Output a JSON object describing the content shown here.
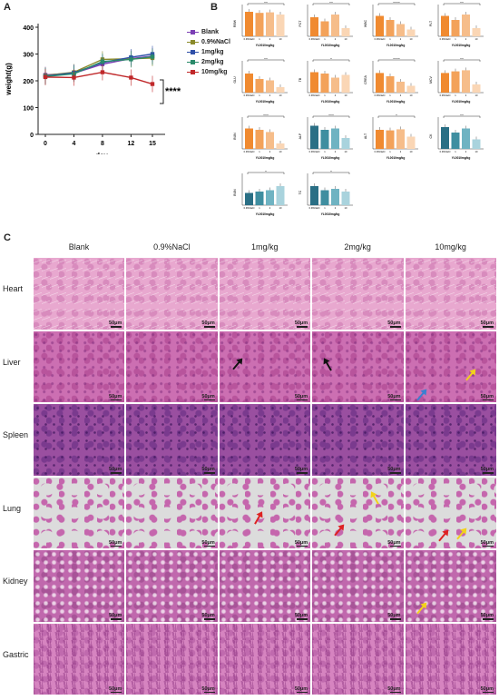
{
  "panels": {
    "a": "A",
    "b": "B",
    "c": "C"
  },
  "chart_data": {
    "type": "line",
    "x": [
      0,
      4,
      8,
      12,
      15
    ],
    "xlabel": "day",
    "ylabel": "weight(g)",
    "ylim": [
      0,
      400
    ],
    "yticks": [
      "0",
      "100",
      "200",
      "300",
      "400"
    ],
    "xticks": [
      "0",
      "4",
      "8",
      "12",
      "15"
    ],
    "significance": "****",
    "series": [
      {
        "name": "Blank",
        "color": "#7b3fb5",
        "values": [
          222,
          228,
          262,
          283,
          292
        ]
      },
      {
        "name": "0.9%NaCl",
        "color": "#8a8a2a",
        "values": [
          220,
          232,
          280,
          282,
          285
        ]
      },
      {
        "name": "1mg/kg",
        "color": "#2f4fa8",
        "values": [
          218,
          230,
          268,
          288,
          300
        ]
      },
      {
        "name": "2mg/kg",
        "color": "#2a8a6a",
        "values": [
          216,
          226,
          272,
          280,
          290
        ]
      },
      {
        "name": "10mg/kg",
        "color": "#c0282a",
        "values": [
          214,
          212,
          232,
          212,
          188
        ]
      }
    ]
  },
  "mini_charts": [
    {
      "label": "RBW",
      "sig": "**"
    },
    {
      "label": "PCT",
      "sig": "**"
    },
    {
      "label": "WBC",
      "sig": "****"
    },
    {
      "label": "PLT",
      "sig": "**"
    },
    {
      "label": "GLU",
      "sig": "**"
    },
    {
      "label": "TB",
      "sig": "*"
    },
    {
      "label": "CREA",
      "sig": "****"
    },
    {
      "label": "MCV",
      "sig": "**"
    },
    {
      "label": "BUN",
      "sig": "***"
    },
    {
      "label": "ALP",
      "sig": "***"
    },
    {
      "label": "ALT",
      "sig": "*"
    },
    {
      "label": "CK",
      "sig": "**"
    },
    {
      "label": "BUN",
      "sig": "*"
    },
    {
      "label": "TC",
      "sig": "*"
    }
  ],
  "mini_xlabel": "YL0010mg/kg",
  "mini_ticks": [
    "0.9%NaCl",
    "1",
    "2",
    "10"
  ],
  "histology": {
    "columns": [
      "Blank",
      "0.9%NaCl",
      "1mg/kg",
      "2mg/kg",
      "10mg/kg"
    ],
    "rows": [
      "Heart",
      "Liver",
      "Spleen",
      "Lung",
      "Kidney",
      "Gastric"
    ],
    "scale_bar": "50μm"
  },
  "colors": {
    "orange": "#f08a30",
    "teal": "#2a6f85",
    "tissue": "#d77fb8"
  }
}
